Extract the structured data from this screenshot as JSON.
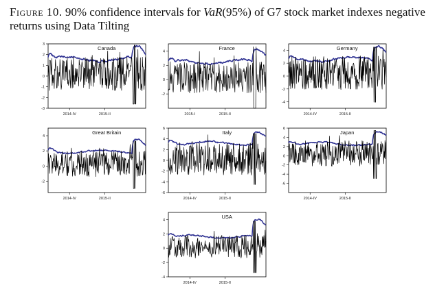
{
  "caption": {
    "figure_label": "Figure 10.",
    "before": "90% confidence intervals for ",
    "var_symbol": "VaR",
    "after": "(95%) of G7 stock market indexes negative returns using Data Tilting"
  },
  "chart_data": [
    {
      "type": "line",
      "title": "Canada",
      "ylim": [
        -3,
        3
      ],
      "yticks": [
        "-3",
        "-2",
        "-1",
        "0",
        "1",
        "2",
        "3"
      ],
      "xticks": [
        "2014-IV",
        "2015-II"
      ],
      "series": [
        {
          "role": "upper-interval",
          "color": "#2e3192",
          "base": 1.6,
          "amp": 0.35,
          "spike": 2.8
        },
        {
          "role": "negative-returns",
          "color": "#000000",
          "base": 0.2,
          "amp": 1.6,
          "spike": 2.9
        }
      ]
    },
    {
      "type": "line",
      "title": "France",
      "ylim": [
        -4,
        5
      ],
      "yticks": [
        "-2",
        "0",
        "2",
        "4"
      ],
      "xticks": [
        "2015-I",
        "2015-II"
      ],
      "series": [
        {
          "role": "upper-interval",
          "color": "#2e3192",
          "base": 2.5,
          "amp": 0.5,
          "spike": 4.2
        },
        {
          "role": "negative-returns",
          "color": "#000000",
          "base": 0.3,
          "amp": 2.2,
          "spike": 4.6
        }
      ]
    },
    {
      "type": "line",
      "title": "Germany",
      "ylim": [
        -5,
        5
      ],
      "yticks": [
        "-4",
        "-2",
        "0",
        "2",
        "4"
      ],
      "xticks": [
        "2014-IV",
        "2015-II"
      ],
      "series": [
        {
          "role": "upper-interval",
          "color": "#2e3192",
          "base": 2.6,
          "amp": 0.6,
          "spike": 4.6
        },
        {
          "role": "negative-returns",
          "color": "#000000",
          "base": 0.5,
          "amp": 2.6,
          "spike": 4.5
        }
      ]
    },
    {
      "type": "line",
      "title": "Great Britain",
      "ylim": [
        -3.5,
        5
      ],
      "yticks": [
        "-2",
        "0",
        "2",
        "4"
      ],
      "xticks": [
        "2014-IV",
        "2015-II"
      ],
      "series": [
        {
          "role": "upper-interval",
          "color": "#2e3192",
          "base": 1.9,
          "amp": 0.35,
          "spike": 3.5
        },
        {
          "role": "negative-returns",
          "color": "#000000",
          "base": 0.3,
          "amp": 1.7,
          "spike": 3.3
        }
      ]
    },
    {
      "type": "line",
      "title": "Italy",
      "ylim": [
        -6,
        6
      ],
      "yticks": [
        "-6",
        "-4",
        "-2",
        "0",
        "2",
        "4",
        "6"
      ],
      "xticks": [
        "2014-IV",
        "2015-II"
      ],
      "series": [
        {
          "role": "upper-interval",
          "color": "#2e3192",
          "base": 3.2,
          "amp": 0.5,
          "spike": 5.2
        },
        {
          "role": "negative-returns",
          "color": "#000000",
          "base": 0.3,
          "amp": 3.0,
          "spike": 5.0
        }
      ]
    },
    {
      "type": "line",
      "title": "Japan",
      "ylim": [
        -8,
        6
      ],
      "yticks": [
        "-6",
        "-4",
        "-2",
        "0",
        "2",
        "4",
        "6"
      ],
      "xticks": [
        "2014-IV",
        "2015-II"
      ],
      "series": [
        {
          "role": "upper-interval",
          "color": "#2e3192",
          "base": 2.6,
          "amp": 0.6,
          "spike": 5.2
        },
        {
          "role": "negative-returns",
          "color": "#000000",
          "base": 0.5,
          "amp": 2.8,
          "spike": 5.5
        }
      ]
    },
    {
      "type": "line",
      "title": "USA",
      "ylim": [
        -4,
        5
      ],
      "yticks": [
        "-4",
        "-2",
        "0",
        "2",
        "4"
      ],
      "xticks": [
        "2014-IV",
        "2015-II"
      ],
      "series": [
        {
          "role": "upper-interval",
          "color": "#2e3192",
          "base": 1.6,
          "amp": 0.35,
          "spike": 4.0
        },
        {
          "role": "negative-returns",
          "color": "#000000",
          "base": 0.2,
          "amp": 1.6,
          "spike": 3.8
        }
      ]
    }
  ]
}
